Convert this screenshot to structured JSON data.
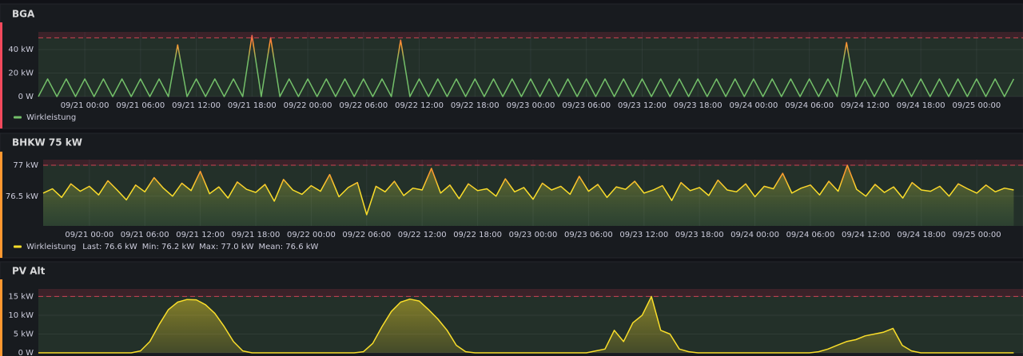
{
  "chart_data": [
    {
      "type": "line",
      "title": "BGA",
      "x": [
        "09/20 19:00",
        "09/20 20:00",
        "09/20 21:00",
        "09/20 22:00",
        "09/20 23:00",
        "09/21 00:00",
        "09/21 01:00",
        "09/21 02:00",
        "09/21 03:00",
        "09/21 04:00",
        "09/21 05:00",
        "09/21 06:00",
        "09/21 07:00",
        "09/21 08:00",
        "09/21 09:00",
        "09/21 10:00",
        "09/21 11:00",
        "09/21 12:00",
        "09/21 13:00",
        "09/21 14:00",
        "09/21 15:00",
        "09/21 16:00",
        "09/21 17:00",
        "09/21 18:00",
        "09/21 19:00",
        "09/21 20:00",
        "09/21 21:00",
        "09/21 22:00",
        "09/21 23:00",
        "09/22 00:00",
        "09/22 01:00",
        "09/22 02:00",
        "09/22 03:00",
        "09/22 04:00",
        "09/22 05:00",
        "09/22 06:00",
        "09/22 07:00",
        "09/22 08:00",
        "09/22 09:00",
        "09/22 10:00",
        "09/22 11:00",
        "09/22 12:00",
        "09/22 13:00",
        "09/22 14:00",
        "09/22 15:00",
        "09/22 16:00",
        "09/22 17:00",
        "09/22 18:00",
        "09/22 19:00",
        "09/22 20:00",
        "09/22 21:00",
        "09/22 22:00",
        "09/22 23:00",
        "09/23 00:00",
        "09/23 01:00",
        "09/23 02:00",
        "09/23 03:00",
        "09/23 04:00",
        "09/23 05:00",
        "09/23 06:00",
        "09/23 07:00",
        "09/23 08:00",
        "09/23 09:00",
        "09/23 10:00",
        "09/23 11:00",
        "09/23 12:00",
        "09/23 13:00",
        "09/23 14:00",
        "09/23 15:00",
        "09/23 16:00",
        "09/23 17:00",
        "09/23 18:00",
        "09/23 19:00",
        "09/23 20:00",
        "09/23 21:00",
        "09/23 22:00",
        "09/23 23:00",
        "09/24 00:00",
        "09/24 01:00",
        "09/24 02:00",
        "09/24 03:00",
        "09/24 04:00",
        "09/24 05:00",
        "09/24 06:00",
        "09/24 07:00",
        "09/24 08:00",
        "09/24 09:00",
        "09/24 10:00",
        "09/24 11:00",
        "09/24 12:00",
        "09/24 13:00",
        "09/24 14:00",
        "09/24 15:00",
        "09/24 16:00",
        "09/24 17:00",
        "09/24 18:00",
        "09/24 19:00",
        "09/24 20:00",
        "09/24 21:00",
        "09/24 22:00",
        "09/24 23:00",
        "09/25 00:00",
        "09/25 01:00",
        "09/25 02:00",
        "09/25 03:00",
        "09/25 04:00"
      ],
      "series": [
        {
          "name": "Wirkleistung",
          "color": "#73bf69",
          "values": [
            0,
            15,
            0,
            15,
            0,
            15,
            0,
            15,
            0,
            15,
            0,
            15,
            0,
            15,
            0,
            44,
            0,
            15,
            0,
            15,
            0,
            15,
            0,
            52,
            0,
            50,
            0,
            15,
            0,
            15,
            0,
            15,
            0,
            15,
            0,
            15,
            0,
            15,
            0,
            48,
            0,
            15,
            0,
            15,
            0,
            15,
            0,
            15,
            0,
            15,
            0,
            15,
            0,
            15,
            0,
            15,
            0,
            15,
            0,
            15,
            0,
            15,
            0,
            15,
            0,
            15,
            0,
            15,
            0,
            15,
            0,
            15,
            0,
            15,
            0,
            15,
            0,
            15,
            0,
            15,
            0,
            15,
            0,
            15,
            0,
            15,
            0,
            46,
            0,
            15,
            0,
            15,
            0,
            15,
            0,
            15,
            0,
            15,
            0,
            15,
            0,
            15,
            0,
            15,
            0,
            15
          ]
        }
      ],
      "xlim": [
        "09/20 19:00",
        "09/25 05:00"
      ],
      "xticks": [
        "09/21 00:00",
        "09/21 06:00",
        "09/21 12:00",
        "09/21 18:00",
        "09/22 00:00",
        "09/22 06:00",
        "09/22 12:00",
        "09/22 18:00",
        "09/23 00:00",
        "09/23 06:00",
        "09/23 12:00",
        "09/23 18:00",
        "09/24 00:00",
        "09/24 06:00",
        "09/24 12:00",
        "09/24 18:00",
        "09/25 00:00"
      ],
      "ylim": [
        0,
        55
      ],
      "yticks": [
        {
          "value": 0,
          "label": "0 W"
        },
        {
          "value": 20,
          "label": "20 kW"
        },
        {
          "value": 40,
          "label": "40 kW"
        }
      ],
      "threshold": 50,
      "grid": true
    },
    {
      "type": "line",
      "title": "BHKW 75 kW",
      "x": [
        "09/20 19:00",
        "09/20 20:00",
        "09/20 21:00",
        "09/20 22:00",
        "09/20 23:00",
        "09/21 00:00",
        "09/21 01:00",
        "09/21 02:00",
        "09/21 03:00",
        "09/21 04:00",
        "09/21 05:00",
        "09/21 06:00",
        "09/21 07:00",
        "09/21 08:00",
        "09/21 09:00",
        "09/21 10:00",
        "09/21 11:00",
        "09/21 12:00",
        "09/21 13:00",
        "09/21 14:00",
        "09/21 15:00",
        "09/21 16:00",
        "09/21 17:00",
        "09/21 18:00",
        "09/21 19:00",
        "09/21 20:00",
        "09/21 21:00",
        "09/21 22:00",
        "09/21 23:00",
        "09/22 00:00",
        "09/22 01:00",
        "09/22 02:00",
        "09/22 03:00",
        "09/22 04:00",
        "09/22 05:00",
        "09/22 06:00",
        "09/22 07:00",
        "09/22 08:00",
        "09/22 09:00",
        "09/22 10:00",
        "09/22 11:00",
        "09/22 12:00",
        "09/22 13:00",
        "09/22 14:00",
        "09/22 15:00",
        "09/22 16:00",
        "09/22 17:00",
        "09/22 18:00",
        "09/22 19:00",
        "09/22 20:00",
        "09/22 21:00",
        "09/22 22:00",
        "09/22 23:00",
        "09/23 00:00",
        "09/23 01:00",
        "09/23 02:00",
        "09/23 03:00",
        "09/23 04:00",
        "09/23 05:00",
        "09/23 06:00",
        "09/23 07:00",
        "09/23 08:00",
        "09/23 09:00",
        "09/23 10:00",
        "09/23 11:00",
        "09/23 12:00",
        "09/23 13:00",
        "09/23 14:00",
        "09/23 15:00",
        "09/23 16:00",
        "09/23 17:00",
        "09/23 18:00",
        "09/23 19:00",
        "09/23 20:00",
        "09/23 21:00",
        "09/23 22:00",
        "09/23 23:00",
        "09/24 00:00",
        "09/24 01:00",
        "09/24 02:00",
        "09/24 03:00",
        "09/24 04:00",
        "09/24 05:00",
        "09/24 06:00",
        "09/24 07:00",
        "09/24 08:00",
        "09/24 09:00",
        "09/24 10:00",
        "09/24 11:00",
        "09/24 12:00",
        "09/24 13:00",
        "09/24 14:00",
        "09/24 15:00",
        "09/24 16:00",
        "09/24 17:00",
        "09/24 18:00",
        "09/24 19:00",
        "09/24 20:00",
        "09/24 21:00",
        "09/24 22:00",
        "09/24 23:00",
        "09/25 00:00",
        "09/25 01:00",
        "09/25 02:00",
        "09/25 03:00",
        "09/25 04:00"
      ],
      "series": [
        {
          "name": "Wirkleistung",
          "color": "#fade2a",
          "values": [
            76.55,
            76.62,
            76.48,
            76.7,
            76.58,
            76.66,
            76.52,
            76.75,
            76.6,
            76.44,
            76.68,
            76.57,
            76.8,
            76.63,
            76.5,
            76.71,
            76.59,
            76.9,
            76.54,
            76.65,
            76.47,
            76.73,
            76.61,
            76.56,
            76.69,
            76.42,
            76.77,
            76.6,
            76.53,
            76.67,
            76.58,
            76.85,
            76.49,
            76.64,
            76.72,
            76.2,
            76.66,
            76.57,
            76.74,
            76.51,
            76.63,
            76.6,
            76.95,
            76.55,
            76.68,
            76.46,
            76.7,
            76.59,
            76.62,
            76.5,
            76.78,
            76.57,
            76.64,
            76.45,
            76.71,
            76.6,
            76.66,
            76.53,
            76.82,
            76.58,
            76.69,
            76.48,
            76.65,
            76.61,
            76.74,
            76.55,
            76.6,
            76.67,
            76.43,
            76.72,
            76.59,
            76.64,
            76.51,
            76.76,
            76.6,
            76.57,
            76.7,
            76.49,
            76.66,
            76.62,
            76.87,
            76.55,
            76.63,
            76.68,
            76.52,
            76.74,
            76.58,
            77.0,
            76.61,
            76.5,
            76.69,
            76.56,
            76.65,
            76.47,
            76.72,
            76.6,
            76.58,
            76.66,
            76.5,
            76.7,
            76.62,
            76.55,
            76.68,
            76.57,
            76.63,
            76.6
          ]
        }
      ],
      "legend_stats": [
        "Last: 76.6 kW",
        "Min: 76.2 kW",
        "Max: 77.0 kW",
        "Mean: 76.6 kW"
      ],
      "xlim": [
        "09/20 19:00",
        "09/25 05:00"
      ],
      "xticks": [
        "09/21 00:00",
        "09/21 06:00",
        "09/21 12:00",
        "09/21 18:00",
        "09/22 00:00",
        "09/22 06:00",
        "09/22 12:00",
        "09/22 18:00",
        "09/23 00:00",
        "09/23 06:00",
        "09/23 12:00",
        "09/23 18:00",
        "09/24 00:00",
        "09/24 06:00",
        "09/24 12:00",
        "09/24 18:00",
        "09/25 00:00"
      ],
      "ylim": [
        76.02,
        77.09
      ],
      "yticks": [
        {
          "value": 76.5,
          "label": "76.5 kW"
        },
        {
          "value": 77,
          "label": "77 kW"
        }
      ],
      "threshold": 77,
      "grid": true
    },
    {
      "type": "line",
      "title": "PV Alt",
      "x": [
        "09/20 19:00",
        "09/20 20:00",
        "09/20 21:00",
        "09/20 22:00",
        "09/20 23:00",
        "09/21 00:00",
        "09/21 01:00",
        "09/21 02:00",
        "09/21 03:00",
        "09/21 04:00",
        "09/21 05:00",
        "09/21 06:00",
        "09/21 07:00",
        "09/21 08:00",
        "09/21 09:00",
        "09/21 10:00",
        "09/21 11:00",
        "09/21 12:00",
        "09/21 13:00",
        "09/21 14:00",
        "09/21 15:00",
        "09/21 16:00",
        "09/21 17:00",
        "09/21 18:00",
        "09/21 19:00",
        "09/21 20:00",
        "09/21 21:00",
        "09/21 22:00",
        "09/21 23:00",
        "09/22 00:00",
        "09/22 01:00",
        "09/22 02:00",
        "09/22 03:00",
        "09/22 04:00",
        "09/22 05:00",
        "09/22 06:00",
        "09/22 07:00",
        "09/22 08:00",
        "09/22 09:00",
        "09/22 10:00",
        "09/22 11:00",
        "09/22 12:00",
        "09/22 13:00",
        "09/22 14:00",
        "09/22 15:00",
        "09/22 16:00",
        "09/22 17:00",
        "09/22 18:00",
        "09/22 19:00",
        "09/22 20:00",
        "09/22 21:00",
        "09/22 22:00",
        "09/22 23:00",
        "09/23 00:00",
        "09/23 01:00",
        "09/23 02:00",
        "09/23 03:00",
        "09/23 04:00",
        "09/23 05:00",
        "09/23 06:00",
        "09/23 07:00",
        "09/23 08:00",
        "09/23 09:00",
        "09/23 10:00",
        "09/23 11:00",
        "09/23 12:00",
        "09/23 13:00",
        "09/23 14:00",
        "09/23 15:00",
        "09/23 16:00",
        "09/23 17:00",
        "09/23 18:00",
        "09/23 19:00",
        "09/23 20:00",
        "09/23 21:00",
        "09/23 22:00",
        "09/23 23:00",
        "09/24 00:00",
        "09/24 01:00",
        "09/24 02:00",
        "09/24 03:00",
        "09/24 04:00",
        "09/24 05:00",
        "09/24 06:00",
        "09/24 07:00",
        "09/24 08:00",
        "09/24 09:00",
        "09/24 10:00",
        "09/24 11:00",
        "09/24 12:00",
        "09/24 13:00",
        "09/24 14:00",
        "09/24 15:00",
        "09/24 16:00",
        "09/24 17:00",
        "09/24 18:00",
        "09/24 19:00",
        "09/24 20:00",
        "09/24 21:00",
        "09/24 22:00",
        "09/24 23:00",
        "09/25 00:00",
        "09/25 01:00",
        "09/25 02:00",
        "09/25 03:00",
        "09/25 04:00"
      ],
      "series": [
        {
          "color": "#fade2a",
          "values": [
            0,
            0,
            0,
            0,
            0,
            0,
            0,
            0,
            0,
            0,
            0,
            0.5,
            3,
            7.5,
            11.5,
            13.5,
            14.2,
            14.1,
            12.8,
            10.5,
            7,
            3,
            0.5,
            0,
            0,
            0,
            0,
            0,
            0,
            0,
            0,
            0,
            0,
            0,
            0,
            0.3,
            2.5,
            7,
            11,
            13.5,
            14.3,
            13.8,
            11.5,
            9,
            6,
            2,
            0.3,
            0,
            0,
            0,
            0,
            0,
            0,
            0,
            0,
            0,
            0,
            0,
            0,
            0,
            0.5,
            1,
            6,
            3,
            8,
            10,
            15,
            6,
            5,
            1,
            0.3,
            0,
            0,
            0,
            0,
            0,
            0,
            0,
            0,
            0,
            0,
            0,
            0,
            0,
            0.3,
            1,
            2,
            3,
            3.5,
            4.5,
            5,
            5.5,
            6.5,
            2,
            0.5,
            0,
            0,
            0,
            0,
            0,
            0,
            0,
            0,
            0,
            0,
            0
          ]
        }
      ],
      "xlim": [
        "09/20 19:00",
        "09/25 05:00"
      ],
      "ylim": [
        0,
        17
      ],
      "yticks": [
        {
          "value": 0,
          "label": "0 W"
        },
        {
          "value": 5,
          "label": "5 kW"
        },
        {
          "value": 10,
          "label": "10 kW"
        },
        {
          "value": 15,
          "label": "15 kW"
        }
      ],
      "threshold": 15,
      "grid": true
    }
  ]
}
